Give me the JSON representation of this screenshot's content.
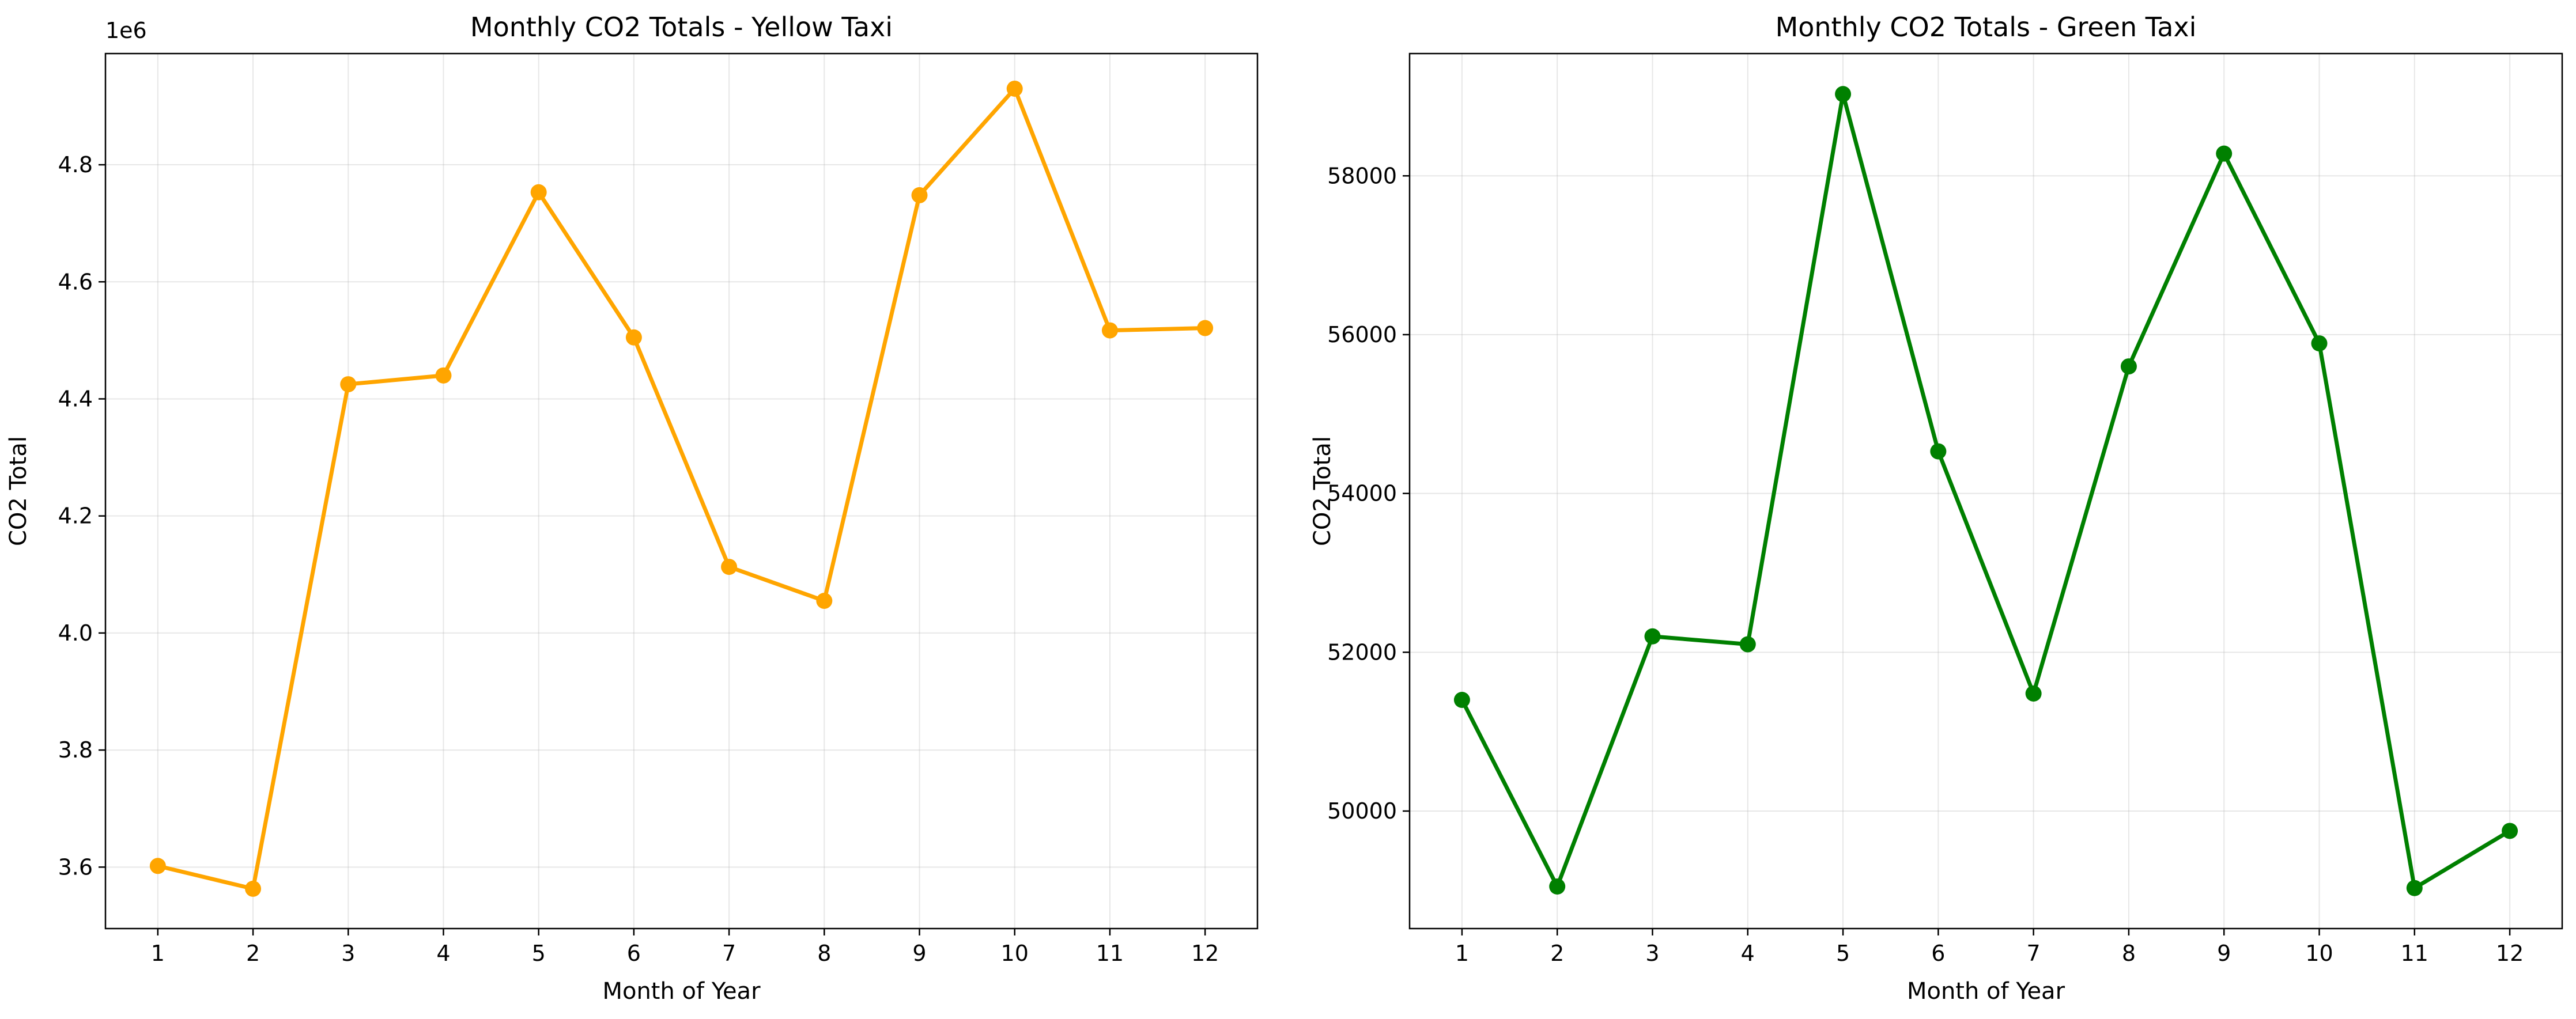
{
  "chart_data": [
    {
      "type": "line",
      "title": "Monthly CO2 Totals - Yellow Taxi",
      "xlabel": "Month of Year",
      "ylabel": "CO2 Total",
      "y_offset_label": "1e6",
      "categories": [
        1,
        2,
        3,
        4,
        5,
        6,
        7,
        8,
        9,
        10,
        11,
        12
      ],
      "x_ticks": [
        "1",
        "2",
        "3",
        "4",
        "5",
        "6",
        "7",
        "8",
        "9",
        "10",
        "11",
        "12"
      ],
      "y_ticks": [
        "3.6",
        "3.8",
        "4.0",
        "4.2",
        "4.4",
        "4.6",
        "4.8"
      ],
      "y_tick_values": [
        3600000,
        3800000,
        4000000,
        4200000,
        4400000,
        4600000,
        4800000
      ],
      "ylim": [
        3495000,
        4990000
      ],
      "xlim": [
        0.45,
        12.55
      ],
      "grid": true,
      "series": [
        {
          "color": "#FFA500",
          "marker": "circle",
          "values": [
            3602000,
            3563000,
            4425000,
            4440000,
            4753000,
            4505000,
            4113000,
            4055000,
            4748000,
            4930000,
            4517000,
            4521000
          ]
        }
      ]
    },
    {
      "type": "line",
      "title": "Monthly CO2 Totals - Green Taxi",
      "xlabel": "Month of Year",
      "ylabel": "CO2 Total",
      "categories": [
        1,
        2,
        3,
        4,
        5,
        6,
        7,
        8,
        9,
        10,
        11,
        12
      ],
      "x_ticks": [
        "1",
        "2",
        "3",
        "4",
        "5",
        "6",
        "7",
        "8",
        "9",
        "10",
        "11",
        "12"
      ],
      "y_ticks": [
        "50000",
        "52000",
        "54000",
        "56000",
        "58000"
      ],
      "y_tick_values": [
        50000,
        52000,
        54000,
        56000,
        58000
      ],
      "ylim": [
        48520,
        59540
      ],
      "xlim": [
        0.45,
        12.55
      ],
      "grid": true,
      "series": [
        {
          "color": "#008000",
          "marker": "circle",
          "values": [
            51400,
            49050,
            52200,
            52100,
            59030,
            54530,
            51480,
            55600,
            58280,
            55890,
            49030,
            49750
          ]
        }
      ]
    }
  ]
}
